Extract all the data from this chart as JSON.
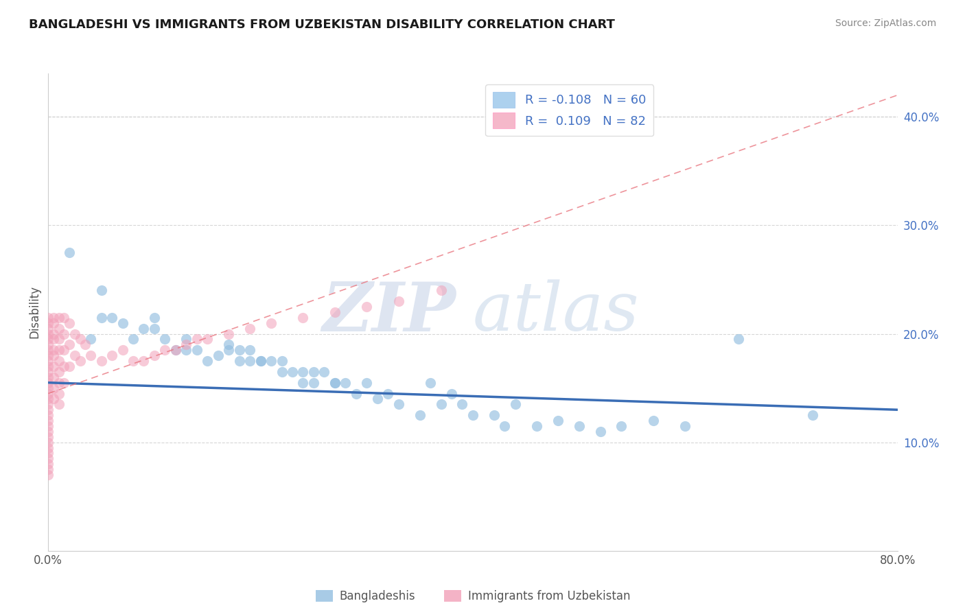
{
  "title": "BANGLADESHI VS IMMIGRANTS FROM UZBEKISTAN DISABILITY CORRELATION CHART",
  "source": "Source: ZipAtlas.com",
  "ylabel": "Disability",
  "xlim": [
    0.0,
    0.8
  ],
  "ylim": [
    0.0,
    0.44
  ],
  "xticks": [
    0.0,
    0.1,
    0.2,
    0.3,
    0.4,
    0.5,
    0.6,
    0.7,
    0.8
  ],
  "xticklabels": [
    "0.0%",
    "",
    "",
    "",
    "",
    "",
    "",
    "",
    "80.0%"
  ],
  "yticks_right": [
    0.1,
    0.2,
    0.3,
    0.4
  ],
  "ytick_right_labels": [
    "10.0%",
    "20.0%",
    "30.0%",
    "40.0%"
  ],
  "legend_labels": [
    "Bangladeshis",
    "Immigrants from Uzbekistan"
  ],
  "legend_R": [
    "-0.108",
    "0.109"
  ],
  "legend_N": [
    "60",
    "82"
  ],
  "blue_scatter_color": "#92BEE0",
  "pink_scatter_color": "#F2A0B8",
  "blue_line_color": "#3A6DB5",
  "pink_line_color": "#E8707A",
  "blue_legend_color": "#ADD1EE",
  "pink_legend_color": "#F5B8CA",
  "watermark_zip": "ZIP",
  "watermark_atlas": "atlas",
  "background_color": "#FFFFFF",
  "grid_color": "#CCCCCC",
  "blue_points_x": [
    0.02,
    0.04,
    0.05,
    0.05,
    0.06,
    0.07,
    0.08,
    0.09,
    0.1,
    0.1,
    0.11,
    0.12,
    0.13,
    0.13,
    0.14,
    0.15,
    0.16,
    0.17,
    0.17,
    0.18,
    0.18,
    0.19,
    0.19,
    0.2,
    0.2,
    0.21,
    0.22,
    0.22,
    0.23,
    0.24,
    0.24,
    0.25,
    0.25,
    0.26,
    0.27,
    0.27,
    0.28,
    0.29,
    0.3,
    0.31,
    0.32,
    0.33,
    0.35,
    0.36,
    0.37,
    0.38,
    0.39,
    0.4,
    0.42,
    0.43,
    0.44,
    0.46,
    0.48,
    0.5,
    0.52,
    0.54,
    0.57,
    0.6,
    0.65,
    0.72
  ],
  "blue_points_y": [
    0.275,
    0.195,
    0.24,
    0.215,
    0.215,
    0.21,
    0.195,
    0.205,
    0.215,
    0.205,
    0.195,
    0.185,
    0.185,
    0.195,
    0.185,
    0.175,
    0.18,
    0.185,
    0.19,
    0.175,
    0.185,
    0.175,
    0.185,
    0.175,
    0.175,
    0.175,
    0.165,
    0.175,
    0.165,
    0.165,
    0.155,
    0.165,
    0.155,
    0.165,
    0.155,
    0.155,
    0.155,
    0.145,
    0.155,
    0.14,
    0.145,
    0.135,
    0.125,
    0.155,
    0.135,
    0.145,
    0.135,
    0.125,
    0.125,
    0.115,
    0.135,
    0.115,
    0.12,
    0.115,
    0.11,
    0.115,
    0.12,
    0.115,
    0.195,
    0.125
  ],
  "pink_points_x": [
    0.0,
    0.0,
    0.0,
    0.0,
    0.0,
    0.0,
    0.0,
    0.0,
    0.0,
    0.0,
    0.0,
    0.0,
    0.0,
    0.0,
    0.0,
    0.0,
    0.0,
    0.0,
    0.0,
    0.0,
    0.0,
    0.0,
    0.0,
    0.0,
    0.0,
    0.0,
    0.0,
    0.0,
    0.0,
    0.0,
    0.005,
    0.005,
    0.005,
    0.005,
    0.005,
    0.005,
    0.005,
    0.005,
    0.005,
    0.005,
    0.01,
    0.01,
    0.01,
    0.01,
    0.01,
    0.01,
    0.01,
    0.01,
    0.01,
    0.015,
    0.015,
    0.015,
    0.015,
    0.015,
    0.02,
    0.02,
    0.02,
    0.025,
    0.025,
    0.03,
    0.03,
    0.035,
    0.04,
    0.05,
    0.06,
    0.07,
    0.08,
    0.09,
    0.1,
    0.11,
    0.12,
    0.13,
    0.14,
    0.15,
    0.17,
    0.19,
    0.21,
    0.24,
    0.27,
    0.3,
    0.33,
    0.37
  ],
  "pink_points_y": [
    0.215,
    0.21,
    0.205,
    0.2,
    0.195,
    0.19,
    0.185,
    0.18,
    0.175,
    0.17,
    0.165,
    0.16,
    0.155,
    0.15,
    0.145,
    0.14,
    0.135,
    0.13,
    0.125,
    0.12,
    0.115,
    0.11,
    0.105,
    0.1,
    0.095,
    0.09,
    0.085,
    0.08,
    0.075,
    0.07,
    0.215,
    0.21,
    0.2,
    0.195,
    0.185,
    0.18,
    0.17,
    0.16,
    0.15,
    0.14,
    0.215,
    0.205,
    0.195,
    0.185,
    0.175,
    0.165,
    0.155,
    0.145,
    0.135,
    0.215,
    0.2,
    0.185,
    0.17,
    0.155,
    0.21,
    0.19,
    0.17,
    0.2,
    0.18,
    0.195,
    0.175,
    0.19,
    0.18,
    0.175,
    0.18,
    0.185,
    0.175,
    0.175,
    0.18,
    0.185,
    0.185,
    0.19,
    0.195,
    0.195,
    0.2,
    0.205,
    0.21,
    0.215,
    0.22,
    0.225,
    0.23,
    0.24
  ],
  "blue_trend_x": [
    0.0,
    0.8
  ],
  "blue_trend_y": [
    0.155,
    0.13
  ],
  "pink_trend_x": [
    0.0,
    0.8
  ],
  "pink_trend_y": [
    0.145,
    0.42
  ]
}
